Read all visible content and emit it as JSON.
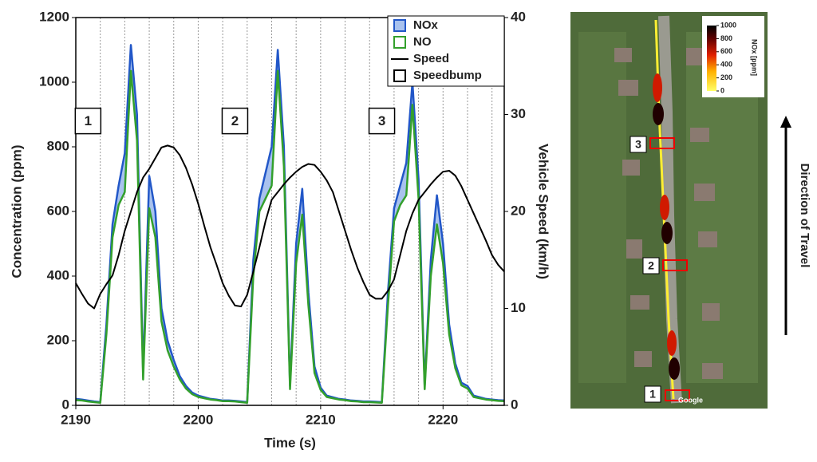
{
  "chart_data": {
    "type": "line",
    "xlabel": "Time (s)",
    "ylabel": "Concentration (ppm)",
    "y2label": "Vehicle Speed (km/h)",
    "xlim": [
      2190,
      2225
    ],
    "xticks": [
      2190,
      2200,
      2210,
      2220
    ],
    "xgrid": [
      2192,
      2194,
      2196,
      2198,
      2200,
      2202,
      2204,
      2206,
      2208,
      2210,
      2212,
      2214,
      2216,
      2218,
      2220,
      2222,
      2224
    ],
    "ylim": [
      0,
      1200
    ],
    "yticks": [
      0,
      200,
      400,
      600,
      800,
      1000,
      1200
    ],
    "y2lim": [
      0,
      40
    ],
    "y2ticks": [
      0,
      10,
      20,
      30,
      40
    ],
    "legend": "upper right",
    "x": [
      2190,
      2190.5,
      2191,
      2191.5,
      2192,
      2192.5,
      2193,
      2193.5,
      2194,
      2194.5,
      2195,
      2195.5,
      2196,
      2196.5,
      2197,
      2197.5,
      2198,
      2198.5,
      2199,
      2199.5,
      2200,
      2200.5,
      2201,
      2201.5,
      2202,
      2202.5,
      2203,
      2203.5,
      2204,
      2204.5,
      2205,
      2205.5,
      2206,
      2206.5,
      2207,
      2207.5,
      2208,
      2208.5,
      2209,
      2209.5,
      2210,
      2210.5,
      2211,
      2211.5,
      2212,
      2212.5,
      2213,
      2213.5,
      2214,
      2214.5,
      2215,
      2215.5,
      2216,
      2216.5,
      2217,
      2217.5,
      2218,
      2218.5,
      2219,
      2219.5,
      2220,
      2220.5,
      2221,
      2221.5,
      2222,
      2222.5,
      2223,
      2223.5,
      2224,
      2224.5,
      2225
    ],
    "series": [
      {
        "name": "NOx",
        "color": "#2257c8",
        "fill": "#a9c2ee",
        "values": [
          20,
          18,
          15,
          12,
          10,
          250,
          560,
          680,
          780,
          1115,
          900,
          100,
          710,
          600,
          300,
          200,
          140,
          90,
          60,
          40,
          30,
          25,
          20,
          18,
          15,
          15,
          14,
          12,
          10,
          450,
          640,
          720,
          800,
          1100,
          800,
          60,
          500,
          670,
          350,
          120,
          55,
          30,
          25,
          20,
          18,
          15,
          14,
          12,
          12,
          11,
          10,
          350,
          610,
          680,
          750,
          1000,
          700,
          60,
          450,
          650,
          500,
          250,
          130,
          70,
          60,
          30,
          25,
          20,
          18,
          16,
          15
        ]
      },
      {
        "name": "NO",
        "color": "#33a02c",
        "values": [
          16,
          15,
          12,
          10,
          8,
          220,
          520,
          620,
          660,
          1035,
          820,
          80,
          610,
          520,
          260,
          170,
          120,
          80,
          52,
          35,
          26,
          22,
          18,
          16,
          13,
          13,
          12,
          10,
          8,
          400,
          600,
          640,
          680,
          1035,
          740,
          50,
          440,
          590,
          310,
          100,
          48,
          26,
          22,
          18,
          16,
          13,
          12,
          10,
          10,
          9,
          8,
          310,
          570,
          620,
          650,
          930,
          640,
          50,
          400,
          560,
          440,
          220,
          115,
          62,
          52,
          26,
          22,
          18,
          16,
          14,
          13
        ]
      },
      {
        "name": "Speed",
        "color": "#000000",
        "axis": "y2",
        "values": [
          12.6,
          11.5,
          10.5,
          10,
          11.5,
          12.5,
          13.4,
          15.5,
          18,
          20,
          22,
          23.5,
          24.4,
          25.5,
          26.6,
          26.8,
          26.6,
          25.8,
          24.5,
          22.8,
          20.8,
          18.5,
          16.3,
          14.5,
          12.6,
          11.3,
          10.3,
          10.2,
          11.4,
          13.8,
          16.3,
          19,
          21.2,
          22,
          22.8,
          23.5,
          24.1,
          24.6,
          24.9,
          24.8,
          24.1,
          23.2,
          22,
          20,
          18,
          16,
          14.2,
          12.7,
          11.4,
          11,
          11,
          11.8,
          13,
          15.5,
          18,
          19.8,
          21.2,
          22,
          22.8,
          23.5,
          24.1,
          24.2,
          23.7,
          22.6,
          21.2,
          19.8,
          18.4,
          17,
          15.5,
          14.5,
          13.8
        ]
      }
    ],
    "speedbump": {
      "name": "Speedbump",
      "color": "#000000",
      "labels": [
        "1",
        "2",
        "3"
      ],
      "x": [
        2191,
        2203,
        2215
      ],
      "y": [
        880,
        880,
        880
      ]
    }
  },
  "map": {
    "colorbar": {
      "label": "NOx [ppm]",
      "range": [
        0,
        1000
      ],
      "ticks": [
        0,
        200,
        400,
        600,
        800,
        1000
      ]
    },
    "markers": [
      "1",
      "2",
      "3"
    ],
    "credit": "Google",
    "direction": "Direction of Travel"
  }
}
